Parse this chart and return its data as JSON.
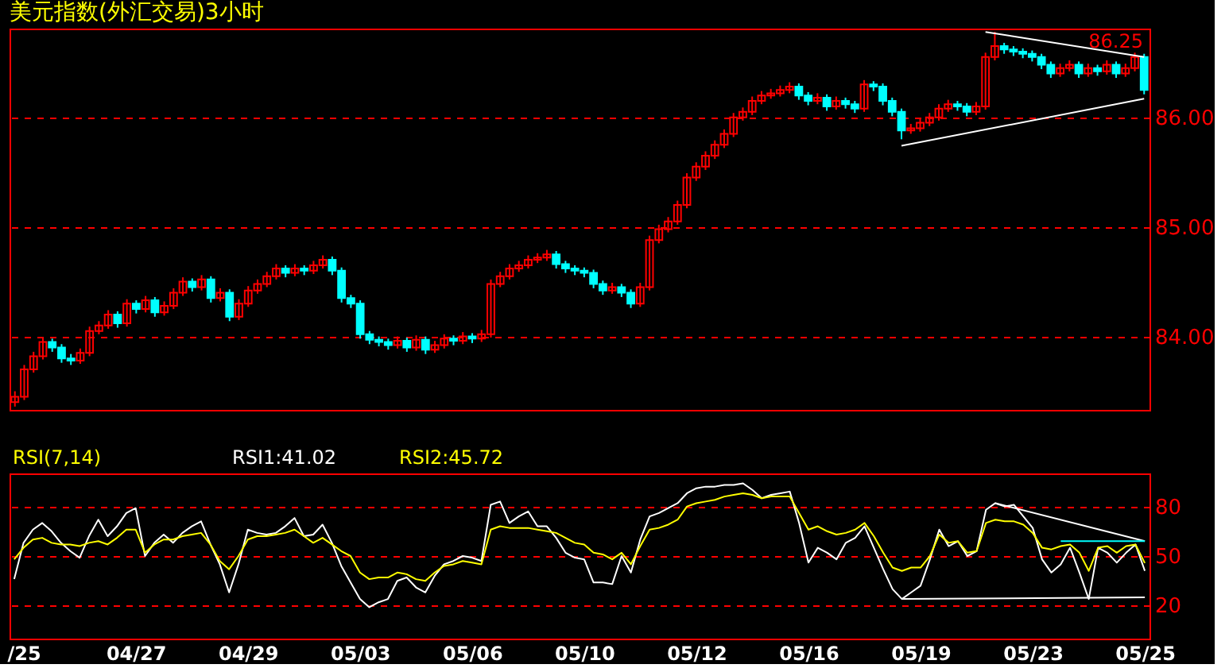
{
  "chart_data": [
    {
      "type": "candlestick",
      "title": "美元指数(外汇交易)3小时",
      "categories": [
        null,
        "/25",
        null,
        null,
        null,
        null,
        null,
        null,
        null,
        null,
        null,
        null,
        null,
        "04/27",
        null,
        null,
        null,
        null,
        null,
        null,
        null,
        null,
        null,
        null,
        null,
        "04/29",
        null,
        null,
        null,
        null,
        null,
        null,
        null,
        null,
        null,
        null,
        null,
        "05/03",
        null,
        null,
        null,
        null,
        null,
        null,
        null,
        null,
        null,
        null,
        null,
        "05/06",
        null,
        null,
        null,
        null,
        null,
        null,
        null,
        null,
        null,
        null,
        null,
        "05/10",
        null,
        null,
        null,
        null,
        null,
        null,
        null,
        null,
        null,
        null,
        null,
        "05/12",
        null,
        null,
        null,
        null,
        null,
        null,
        null,
        null,
        null,
        null,
        null,
        "05/16",
        null,
        null,
        null,
        null,
        null,
        null,
        null,
        null,
        null,
        null,
        null,
        "05/19",
        null,
        null,
        null,
        null,
        null,
        null,
        null,
        null,
        null,
        null,
        null,
        "05/23",
        null,
        null,
        null,
        null,
        null,
        null,
        null,
        null,
        null,
        null,
        null,
        "05/25"
      ],
      "ohlc": [
        [
          83.4,
          83.5,
          83.36,
          83.45
        ],
        [
          83.45,
          83.74,
          83.42,
          83.7
        ],
        [
          83.7,
          83.86,
          83.67,
          83.82
        ],
        [
          83.82,
          83.99,
          83.79,
          83.95
        ],
        [
          83.95,
          83.98,
          83.86,
          83.9
        ],
        [
          83.9,
          83.93,
          83.76,
          83.8
        ],
        [
          83.8,
          83.84,
          83.74,
          83.78
        ],
        [
          83.78,
          83.89,
          83.75,
          83.85
        ],
        [
          83.85,
          84.09,
          83.82,
          84.05
        ],
        [
          84.05,
          84.14,
          84.02,
          84.1
        ],
        [
          84.1,
          84.24,
          84.07,
          84.2
        ],
        [
          84.2,
          84.23,
          84.08,
          84.12
        ],
        [
          84.12,
          84.34,
          84.09,
          84.3
        ],
        [
          84.3,
          84.33,
          84.21,
          84.25
        ],
        [
          84.25,
          84.37,
          84.22,
          84.33
        ],
        [
          84.33,
          84.36,
          84.18,
          84.22
        ],
        [
          84.22,
          84.32,
          84.19,
          84.28
        ],
        [
          84.28,
          84.44,
          84.25,
          84.4
        ],
        [
          84.4,
          84.54,
          84.37,
          84.5
        ],
        [
          84.5,
          84.53,
          84.41,
          84.45
        ],
        [
          84.45,
          84.56,
          84.42,
          84.52
        ],
        [
          84.52,
          84.55,
          84.31,
          84.35
        ],
        [
          84.35,
          84.44,
          84.32,
          84.4
        ],
        [
          84.4,
          84.43,
          84.14,
          84.18
        ],
        [
          84.18,
          84.34,
          84.15,
          84.3
        ],
        [
          84.3,
          84.46,
          84.27,
          84.42
        ],
        [
          84.42,
          84.52,
          84.39,
          84.48
        ],
        [
          84.48,
          84.59,
          84.45,
          84.55
        ],
        [
          84.55,
          84.66,
          84.52,
          84.62
        ],
        [
          84.62,
          84.65,
          84.54,
          84.58
        ],
        [
          84.58,
          84.66,
          84.55,
          84.62
        ],
        [
          84.62,
          84.65,
          84.56,
          84.6
        ],
        [
          84.6,
          84.69,
          84.57,
          84.65
        ],
        [
          84.65,
          84.74,
          84.62,
          84.7
        ],
        [
          84.7,
          84.73,
          84.56,
          84.6
        ],
        [
          84.6,
          84.63,
          84.31,
          84.35
        ],
        [
          84.35,
          84.38,
          84.26,
          84.3
        ],
        [
          84.3,
          84.33,
          83.98,
          84.02
        ],
        [
          84.02,
          84.05,
          83.93,
          83.97
        ],
        [
          83.97,
          84.0,
          83.91,
          83.95
        ],
        [
          83.95,
          83.98,
          83.88,
          83.92
        ],
        [
          83.92,
          84.0,
          83.89,
          83.96
        ],
        [
          83.96,
          83.99,
          83.86,
          83.9
        ],
        [
          83.9,
          84.01,
          83.87,
          83.97
        ],
        [
          83.97,
          84.0,
          83.84,
          83.88
        ],
        [
          83.88,
          83.96,
          83.85,
          83.92
        ],
        [
          83.92,
          84.02,
          83.89,
          83.98
        ],
        [
          83.98,
          84.01,
          83.92,
          83.96
        ],
        [
          83.96,
          84.04,
          83.93,
          84.0
        ],
        [
          84.0,
          84.03,
          83.94,
          83.98
        ],
        [
          83.98,
          84.06,
          83.95,
          84.02
        ],
        [
          84.02,
          84.52,
          83.99,
          84.48
        ],
        [
          84.48,
          84.59,
          84.45,
          84.55
        ],
        [
          84.55,
          84.66,
          84.52,
          84.62
        ],
        [
          84.62,
          84.69,
          84.59,
          84.65
        ],
        [
          84.65,
          84.74,
          84.62,
          84.7
        ],
        [
          84.7,
          84.76,
          84.67,
          84.72
        ],
        [
          84.72,
          84.79,
          84.69,
          84.75
        ],
        [
          84.75,
          84.78,
          84.62,
          84.66
        ],
        [
          84.66,
          84.69,
          84.58,
          84.62
        ],
        [
          84.62,
          84.65,
          84.56,
          84.6
        ],
        [
          84.6,
          84.63,
          84.54,
          84.58
        ],
        [
          84.58,
          84.61,
          84.44,
          84.48
        ],
        [
          84.48,
          84.51,
          84.38,
          84.42
        ],
        [
          84.42,
          84.49,
          84.39,
          84.45
        ],
        [
          84.45,
          84.48,
          84.36,
          84.4
        ],
        [
          84.4,
          84.43,
          84.26,
          84.3
        ],
        [
          84.3,
          84.49,
          84.27,
          84.45
        ],
        [
          84.45,
          84.92,
          84.42,
          84.88
        ],
        [
          84.88,
          85.02,
          84.85,
          84.98
        ],
        [
          84.98,
          85.09,
          84.95,
          85.05
        ],
        [
          85.05,
          85.24,
          85.02,
          85.2
        ],
        [
          85.2,
          85.49,
          85.17,
          85.45
        ],
        [
          85.45,
          85.59,
          85.42,
          85.55
        ],
        [
          85.55,
          85.69,
          85.52,
          85.65
        ],
        [
          85.65,
          85.79,
          85.62,
          85.75
        ],
        [
          85.75,
          85.89,
          85.72,
          85.85
        ],
        [
          85.85,
          86.04,
          85.82,
          86.0
        ],
        [
          86.0,
          86.09,
          85.97,
          86.05
        ],
        [
          86.05,
          86.19,
          86.02,
          86.15
        ],
        [
          86.15,
          86.24,
          86.12,
          86.2
        ],
        [
          86.2,
          86.26,
          86.17,
          86.22
        ],
        [
          86.22,
          86.29,
          86.19,
          86.25
        ],
        [
          86.25,
          86.32,
          86.22,
          86.28
        ],
        [
          86.28,
          86.31,
          86.16,
          86.2
        ],
        [
          86.2,
          86.23,
          86.11,
          86.15
        ],
        [
          86.15,
          86.22,
          86.12,
          86.18
        ],
        [
          86.18,
          86.21,
          86.06,
          86.1
        ],
        [
          86.1,
          86.19,
          86.07,
          86.15
        ],
        [
          86.15,
          86.18,
          86.08,
          86.12
        ],
        [
          86.12,
          86.15,
          86.04,
          86.08
        ],
        [
          86.08,
          86.34,
          86.05,
          86.3
        ],
        [
          86.3,
          86.33,
          86.24,
          86.28
        ],
        [
          86.28,
          86.31,
          86.11,
          86.15
        ],
        [
          86.15,
          86.18,
          86.01,
          86.05
        ],
        [
          86.05,
          86.08,
          85.8,
          85.88
        ],
        [
          85.88,
          85.94,
          85.85,
          85.9
        ],
        [
          85.9,
          85.99,
          85.87,
          85.95
        ],
        [
          85.95,
          86.04,
          85.92,
          86.0
        ],
        [
          86.0,
          86.12,
          85.97,
          86.08
        ],
        [
          86.08,
          86.16,
          86.05,
          86.12
        ],
        [
          86.12,
          86.15,
          86.06,
          86.1
        ],
        [
          86.1,
          86.13,
          86.01,
          86.05
        ],
        [
          86.05,
          86.14,
          86.02,
          86.1
        ],
        [
          86.1,
          86.59,
          86.07,
          86.55
        ],
        [
          86.55,
          86.78,
          86.52,
          86.65
        ],
        [
          86.65,
          86.68,
          86.58,
          86.62
        ],
        [
          86.62,
          86.65,
          86.56,
          86.6
        ],
        [
          86.6,
          86.63,
          86.54,
          86.58
        ],
        [
          86.58,
          86.61,
          86.51,
          86.55
        ],
        [
          86.55,
          86.58,
          86.44,
          86.48
        ],
        [
          86.48,
          86.51,
          86.36,
          86.4
        ],
        [
          86.4,
          86.49,
          86.37,
          86.45
        ],
        [
          86.45,
          86.52,
          86.42,
          86.48
        ],
        [
          86.48,
          86.51,
          86.36,
          86.4
        ],
        [
          86.4,
          86.49,
          86.37,
          86.45
        ],
        [
          86.45,
          86.48,
          86.38,
          86.42
        ],
        [
          86.42,
          86.52,
          86.39,
          86.48
        ],
        [
          86.48,
          86.51,
          86.36,
          86.4
        ],
        [
          86.4,
          86.49,
          86.37,
          86.45
        ],
        [
          86.45,
          86.59,
          86.42,
          86.55
        ],
        [
          86.55,
          86.58,
          86.21,
          86.25
        ]
      ],
      "colors": [
        "#ff0000",
        "#ff0000",
        "#ff0000",
        "#ff0000",
        "#00ffff",
        "#00ffff",
        "#00ffff",
        "#ff0000",
        "#ff0000",
        "#ff0000",
        "#ff0000",
        "#00ffff",
        "#ff0000",
        "#00ffff",
        "#ff0000",
        "#00ffff",
        "#ff0000",
        "#ff0000",
        "#ff0000",
        "#00ffff",
        "#ff0000",
        "#00ffff",
        "#ff0000",
        "#00ffff",
        "#ff0000",
        "#ff0000",
        "#ff0000",
        "#ff0000",
        "#ff0000",
        "#00ffff",
        "#ff0000",
        "#00ffff",
        "#ff0000",
        "#ff0000",
        "#00ffff",
        "#00ffff",
        "#00ffff",
        "#00ffff",
        "#00ffff",
        "#00ffff",
        "#00ffff",
        "#ff0000",
        "#00ffff",
        "#ff0000",
        "#00ffff",
        "#ff0000",
        "#ff0000",
        "#00ffff",
        "#ff0000",
        "#00ffff",
        "#ff0000",
        "#ff0000",
        "#ff0000",
        "#ff0000",
        "#ff0000",
        "#ff0000",
        "#ff0000",
        "#ff0000",
        "#00ffff",
        "#00ffff",
        "#00ffff",
        "#00ffff",
        "#00ffff",
        "#00ffff",
        "#ff0000",
        "#00ffff",
        "#00ffff",
        "#ff0000",
        "#ff0000",
        "#ff0000",
        "#ff0000",
        "#ff0000",
        "#ff0000",
        "#ff0000",
        "#ff0000",
        "#ff0000",
        "#ff0000",
        "#ff0000",
        "#ff0000",
        "#ff0000",
        "#ff0000",
        "#ff0000",
        "#ff0000",
        "#ff0000",
        "#00ffff",
        "#00ffff",
        "#ff0000",
        "#00ffff",
        "#ff0000",
        "#00ffff",
        "#00ffff",
        "#ff0000",
        "#00ffff",
        "#00ffff",
        "#00ffff",
        "#00ffff",
        "#ff0000",
        "#ff0000",
        "#ff0000",
        "#ff0000",
        "#ff0000",
        "#00ffff",
        "#00ffff",
        "#ff0000",
        "#ff0000",
        "#ff0000",
        "#00ffff",
        "#00ffff",
        "#00ffff",
        "#00ffff",
        "#00ffff",
        "#00ffff",
        "#ff0000",
        "#ff0000",
        "#00ffff",
        "#ff0000",
        "#00ffff",
        "#ff0000",
        "#00ffff",
        "#ff0000",
        "#ff0000",
        "#00ffff"
      ],
      "series": [
        {
          "type": "line",
          "color": "#ffffff",
          "values": [
            null,
            null,
            null,
            null,
            null,
            null,
            null,
            null,
            null,
            null,
            null,
            null,
            null,
            null,
            null,
            null,
            null,
            null,
            null,
            null,
            null,
            null,
            null,
            null,
            null,
            null,
            null,
            null,
            null,
            null,
            null,
            null,
            null,
            null,
            null,
            null,
            null,
            null,
            null,
            null,
            null,
            null,
            null,
            null,
            null,
            null,
            null,
            null,
            null,
            null,
            null,
            null,
            null,
            null,
            null,
            null,
            null,
            null,
            null,
            null,
            null,
            null,
            null,
            null,
            null,
            null,
            null,
            null,
            null,
            null,
            null,
            null,
            null,
            null,
            null,
            null,
            null,
            null,
            null,
            null,
            null,
            null,
            null,
            null,
            null,
            null,
            null,
            null,
            null,
            null,
            null,
            null,
            null,
            null,
            null,
            null,
            null,
            null,
            null,
            null,
            null,
            null,
            null,
            null,
            86.78,
            null,
            null,
            null,
            null,
            null,
            null,
            null,
            null,
            null,
            null,
            null,
            null,
            null,
            null,
            null,
            null,
            86.55
          ]
        },
        {
          "type": "line",
          "color": "#ffffff",
          "values": [
            null,
            null,
            null,
            null,
            null,
            null,
            null,
            null,
            null,
            null,
            null,
            null,
            null,
            null,
            null,
            null,
            null,
            null,
            null,
            null,
            null,
            null,
            null,
            null,
            null,
            null,
            null,
            null,
            null,
            null,
            null,
            null,
            null,
            null,
            null,
            null,
            null,
            null,
            null,
            null,
            null,
            null,
            null,
            null,
            null,
            null,
            null,
            null,
            null,
            null,
            null,
            null,
            null,
            null,
            null,
            null,
            null,
            null,
            null,
            null,
            null,
            null,
            null,
            null,
            null,
            null,
            null,
            null,
            null,
            null,
            null,
            null,
            null,
            null,
            null,
            null,
            null,
            null,
            null,
            null,
            null,
            null,
            null,
            null,
            null,
            null,
            null,
            null,
            null,
            null,
            null,
            null,
            null,
            null,
            null,
            85.74,
            null,
            null,
            null,
            null,
            null,
            null,
            null,
            null,
            null,
            null,
            null,
            null,
            null,
            null,
            null,
            null,
            null,
            null,
            null,
            null,
            null,
            null,
            null,
            null,
            null,
            86.17
          ]
        }
      ],
      "ylim": [
        83.33,
        86.81
      ],
      "yticks": [
        {
          "value": 84,
          "label": "84.00"
        },
        {
          "value": 85,
          "label": "85.00"
        },
        {
          "value": 86,
          "label": "86.00"
        }
      ],
      "grid": "y",
      "tick_labels": "y",
      "annotations": [
        "86.25"
      ]
    },
    {
      "type": "line",
      "subtitle": "RSI(7,14)",
      "series": [
        {
          "color": "#ffffff",
          "values": [
            36,
            58,
            66,
            70,
            65,
            58,
            53,
            49,
            62,
            72,
            62,
            68,
            76,
            79,
            50,
            58,
            63,
            58,
            64,
            68,
            71,
            57,
            45,
            28,
            45,
            66,
            64,
            63,
            64,
            68,
            73,
            62,
            63,
            69,
            58,
            44,
            34,
            24,
            19,
            22,
            24,
            35,
            37,
            31,
            28,
            38,
            45,
            47,
            50,
            49,
            47,
            81,
            83,
            70,
            74,
            77,
            68,
            68,
            61,
            52,
            49,
            48,
            34,
            34,
            33,
            50,
            40,
            60,
            74,
            76,
            79,
            82,
            88,
            91,
            92,
            92,
            93,
            93,
            94,
            90,
            85,
            87,
            88,
            89,
            70,
            46,
            55,
            52,
            48,
            58,
            61,
            68,
            55,
            42,
            30,
            24,
            28,
            32,
            48,
            66,
            56,
            59,
            50,
            53,
            78,
            82,
            80,
            81,
            74,
            67,
            48,
            40,
            45,
            55,
            40,
            24,
            55,
            52,
            46,
            52,
            57,
            41.02
          ]
        },
        {
          "color": "#ffff00",
          "values": [
            48,
            55,
            60,
            61,
            58,
            57,
            57,
            56,
            58,
            59,
            57,
            61,
            66,
            66,
            52,
            57,
            60,
            60,
            62,
            63,
            64,
            57,
            47,
            42,
            50,
            60,
            62,
            62,
            63,
            64,
            66,
            62,
            58,
            61,
            57,
            53,
            50,
            40,
            36,
            37,
            37,
            40,
            39,
            36,
            35,
            40,
            44,
            45,
            47,
            46,
            45,
            66,
            68,
            67,
            67,
            67,
            66,
            65,
            64,
            61,
            58,
            57,
            52,
            51,
            48,
            52,
            45,
            56,
            66,
            67,
            69,
            72,
            80,
            82,
            83,
            84,
            86,
            87,
            88,
            87,
            85,
            86,
            86,
            86,
            76,
            66,
            68,
            65,
            63,
            64,
            66,
            70,
            62,
            52,
            43,
            41,
            43,
            43,
            50,
            63,
            58,
            59,
            52,
            53,
            70,
            72,
            71,
            71,
            69,
            64,
            55,
            54,
            56,
            57,
            52,
            41,
            55,
            56,
            52,
            56,
            57,
            45.72
          ]
        },
        {
          "type": "line",
          "color": "#ffffff",
          "values": [
            null,
            null,
            null,
            null,
            null,
            null,
            null,
            null,
            null,
            null,
            null,
            null,
            null,
            null,
            null,
            null,
            null,
            null,
            null,
            null,
            null,
            null,
            null,
            null,
            null,
            null,
            null,
            null,
            null,
            null,
            null,
            null,
            null,
            null,
            null,
            null,
            null,
            null,
            null,
            null,
            null,
            null,
            null,
            null,
            null,
            null,
            null,
            null,
            null,
            null,
            null,
            null,
            null,
            null,
            null,
            null,
            null,
            null,
            null,
            null,
            null,
            null,
            null,
            null,
            null,
            null,
            null,
            null,
            null,
            null,
            null,
            null,
            null,
            null,
            null,
            null,
            null,
            null,
            null,
            null,
            null,
            null,
            null,
            null,
            null,
            null,
            null,
            null,
            null,
            null,
            null,
            null,
            null,
            null,
            null,
            24,
            null,
            null,
            null,
            null,
            null,
            null,
            null,
            null,
            null,
            null,
            null,
            null,
            null,
            null,
            null,
            null,
            null,
            null,
            null,
            null,
            null,
            null,
            null,
            null,
            null,
            25
          ]
        },
        {
          "type": "line",
          "color": "#ffffff",
          "values": [
            null,
            null,
            null,
            null,
            null,
            null,
            null,
            null,
            null,
            null,
            null,
            null,
            null,
            null,
            null,
            null,
            null,
            null,
            null,
            null,
            null,
            null,
            null,
            null,
            null,
            null,
            null,
            null,
            null,
            null,
            null,
            null,
            null,
            null,
            null,
            null,
            null,
            null,
            null,
            null,
            null,
            null,
            null,
            null,
            null,
            null,
            null,
            null,
            null,
            null,
            null,
            null,
            null,
            null,
            null,
            null,
            null,
            null,
            null,
            null,
            null,
            null,
            null,
            null,
            null,
            null,
            null,
            null,
            null,
            null,
            null,
            null,
            null,
            null,
            null,
            null,
            null,
            null,
            null,
            null,
            null,
            null,
            null,
            null,
            null,
            null,
            null,
            null,
            null,
            null,
            null,
            null,
            null,
            null,
            null,
            null,
            null,
            null,
            null,
            null,
            null,
            null,
            null,
            null,
            null,
            82,
            null,
            null,
            null,
            null,
            null,
            null,
            null,
            null,
            null,
            null,
            null,
            null,
            null,
            null,
            null,
            59
          ]
        },
        {
          "type": "line",
          "color": "#00ffff",
          "values": [
            null,
            null,
            null,
            null,
            null,
            null,
            null,
            null,
            null,
            null,
            null,
            null,
            null,
            null,
            null,
            null,
            null,
            null,
            null,
            null,
            null,
            null,
            null,
            null,
            null,
            null,
            null,
            null,
            null,
            null,
            null,
            null,
            null,
            null,
            null,
            null,
            null,
            null,
            null,
            null,
            null,
            null,
            null,
            null,
            null,
            null,
            null,
            null,
            null,
            null,
            null,
            null,
            null,
            null,
            null,
            null,
            null,
            null,
            null,
            null,
            null,
            null,
            null,
            null,
            null,
            null,
            null,
            null,
            null,
            null,
            null,
            null,
            null,
            null,
            null,
            null,
            null,
            null,
            null,
            null,
            null,
            null,
            null,
            null,
            null,
            null,
            null,
            null,
            null,
            null,
            null,
            null,
            null,
            null,
            null,
            null,
            null,
            null,
            null,
            null,
            null,
            null,
            null,
            null,
            null,
            null,
            null,
            null,
            null,
            null,
            null,
            null,
            59,
            null,
            null,
            null,
            null,
            null,
            null,
            null,
            null,
            59
          ]
        }
      ],
      "ylim": [
        0,
        100
      ],
      "yticks": [
        20,
        50,
        80
      ],
      "grid": "y",
      "annotations": [
        "RSI1:41.02",
        "RSI2:45.72"
      ]
    }
  ]
}
